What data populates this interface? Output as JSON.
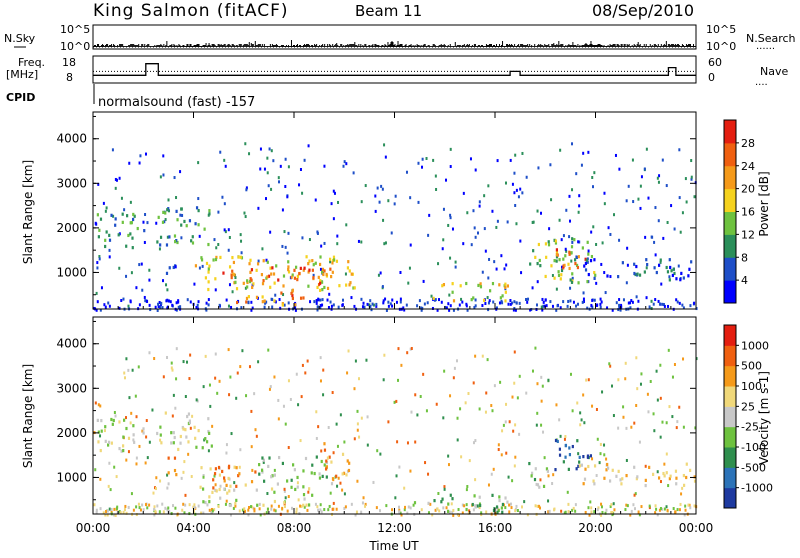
{
  "header": {
    "station": "King Salmon (fitACF)",
    "beam": "Beam 11",
    "date": "08/Sep/2010"
  },
  "top_panels": {
    "nsky_label": "N.Sky",
    "nsky_ticks": [
      "10^5",
      "10^0"
    ],
    "nsearch_label": "N.Search",
    "nsearch_ticks": [
      "10^5",
      "10^0"
    ],
    "freq_label_line1": "Freq.",
    "freq_label_line2": "[MHz]",
    "freq_ticks": [
      "18",
      "8"
    ],
    "nave_label": "Nave",
    "nave_ticks": [
      "60",
      "0"
    ],
    "cpid_label": "CPID",
    "cpid_text": "normalsound (fast) -157"
  },
  "chart_data": [
    {
      "type": "heatmap",
      "name": "power-panel",
      "ylabel": "Slant Range [km]",
      "yticks": [
        "4000",
        "3000",
        "2000",
        "1000"
      ],
      "ytick_values": [
        4000,
        3000,
        2000,
        1000
      ],
      "ylim": [
        180,
        4600
      ],
      "xlim": [
        0,
        24
      ],
      "colorbar": {
        "label": "Power [dB]",
        "ticks": [
          "28",
          "24",
          "20",
          "16",
          "12",
          "8",
          "4"
        ],
        "colors": [
          "#0000ff",
          "#1e4fc8",
          "#2b8f5a",
          "#6ec23f",
          "#f5d21e",
          "#f59a1a",
          "#f06010",
          "#e41e10"
        ]
      },
      "regions": [
        {
          "x0": 0.1,
          "x1": 2.0,
          "y0": 1550,
          "y1": 2350,
          "level": 2
        },
        {
          "x0": 2.5,
          "x1": 4.7,
          "y0": 1650,
          "y1": 2500,
          "level": 2
        },
        {
          "x0": 2.7,
          "x1": 3.3,
          "y0": 1000,
          "y1": 1500,
          "level": 1
        },
        {
          "x0": 4.0,
          "x1": 10.4,
          "y0": 600,
          "y1": 1400,
          "level": 4
        },
        {
          "x0": 5.0,
          "x1": 9.6,
          "y0": 700,
          "y1": 1150,
          "level": 6
        },
        {
          "x0": 6.5,
          "x1": 8.5,
          "y0": 450,
          "y1": 600,
          "level": 6
        },
        {
          "x0": 5.5,
          "x1": 9.0,
          "y0": 300,
          "y1": 500,
          "level": 5
        },
        {
          "x0": 13.5,
          "x1": 16.5,
          "y0": 350,
          "y1": 800,
          "level": 4
        },
        {
          "x0": 17.3,
          "x1": 20.0,
          "y0": 800,
          "y1": 1800,
          "level": 3
        },
        {
          "x0": 18.2,
          "x1": 19.6,
          "y0": 1100,
          "y1": 1600,
          "level": 6
        },
        {
          "x0": 19.5,
          "x1": 24.0,
          "y0": 850,
          "y1": 1350,
          "level": 1
        }
      ]
    },
    {
      "type": "heatmap",
      "name": "velocity-panel",
      "ylabel": "Slant Range [km]",
      "xlabel": "Time UT",
      "xticks": [
        "00:00",
        "04:00",
        "08:00",
        "12:00",
        "16:00",
        "20:00",
        "00:00"
      ],
      "xtick_values": [
        0,
        4,
        8,
        12,
        16,
        20,
        24
      ],
      "yticks": [
        "4000",
        "3000",
        "2000",
        "1000"
      ],
      "ytick_values": [
        4000,
        3000,
        2000,
        1000
      ],
      "ylim": [
        180,
        4600
      ],
      "xlim": [
        0,
        24
      ],
      "colorbar": {
        "label": "Velocity [m s-1]",
        "ticks": [
          "1000",
          "500",
          "100",
          "25",
          "-25",
          "-100",
          "-500",
          "-1000"
        ],
        "colors": [
          "#1e3aa0",
          "#2c73b8",
          "#2f8f4e",
          "#6ec23f",
          "#c8c8c8",
          "#f0d87a",
          "#f59a1a",
          "#f06010",
          "#e41e10"
        ]
      },
      "regions": [
        {
          "x0": 0.1,
          "x1": 2.0,
          "y0": 1550,
          "y1": 2350,
          "level": 4
        },
        {
          "x0": 2.5,
          "x1": 4.7,
          "y0": 1650,
          "y1": 2500,
          "level": 4
        },
        {
          "x0": 2.7,
          "x1": 3.3,
          "y0": 1000,
          "y1": 1500,
          "level": 6
        },
        {
          "x0": 4.0,
          "x1": 6.5,
          "y0": 700,
          "y1": 1300,
          "level": 6
        },
        {
          "x0": 6.5,
          "x1": 9.5,
          "y0": 800,
          "y1": 1500,
          "level": 3
        },
        {
          "x0": 4.3,
          "x1": 8.8,
          "y0": 400,
          "y1": 800,
          "level": 4
        },
        {
          "x0": 9.0,
          "x1": 10.2,
          "y0": 1000,
          "y1": 1800,
          "level": 6
        },
        {
          "x0": 12.5,
          "x1": 16.5,
          "y0": 250,
          "y1": 650,
          "level": 3
        },
        {
          "x0": 17.3,
          "x1": 18.2,
          "y0": 800,
          "y1": 1400,
          "level": 3
        },
        {
          "x0": 18.2,
          "x1": 19.8,
          "y0": 1100,
          "y1": 1900,
          "level": 1
        },
        {
          "x0": 19.2,
          "x1": 24.0,
          "y0": 850,
          "y1": 1350,
          "level": 5
        }
      ]
    }
  ]
}
